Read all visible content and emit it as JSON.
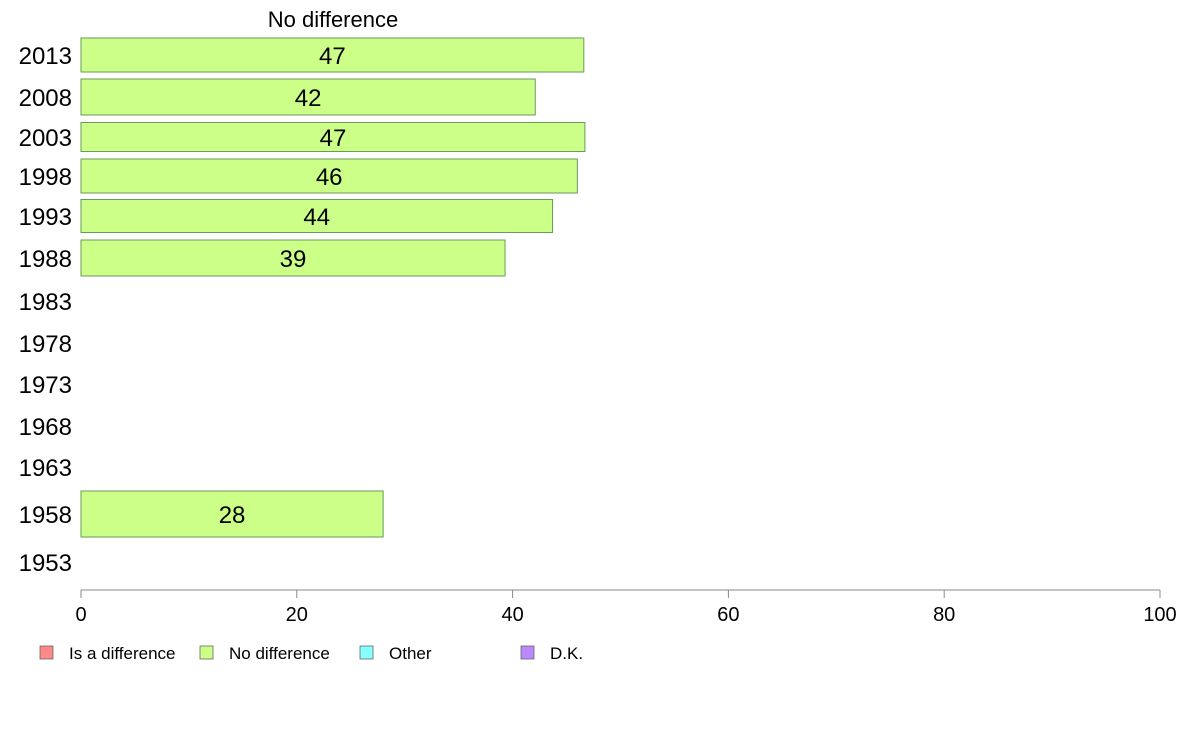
{
  "chart_data": {
    "type": "bar",
    "orientation": "horizontal",
    "title": "No difference",
    "categories": [
      "2013",
      "2008",
      "2003",
      "1998",
      "1993",
      "1988",
      "1983",
      "1978",
      "1973",
      "1968",
      "1963",
      "1958",
      "1953"
    ],
    "series": [
      {
        "name": "No difference",
        "color": "#ccff88",
        "values": [
          46.6,
          42.1,
          46.7,
          46.0,
          43.7,
          39.3,
          null,
          null,
          null,
          null,
          null,
          28.0,
          null
        ],
        "labels": [
          "47",
          "42",
          "47",
          "46",
          "44",
          "39",
          "",
          "",
          "",
          "",
          "",
          "28",
          ""
        ]
      }
    ],
    "xlim": [
      0,
      100
    ],
    "xticks": [
      "0",
      "20",
      "40",
      "60",
      "80",
      "100"
    ],
    "legend": {
      "placement": "bottom-left",
      "items": [
        {
          "label": "Is a difference",
          "color": "#ff8888"
        },
        {
          "label": "No difference",
          "color": "#ccff88"
        },
        {
          "label": "Other",
          "color": "#88ffff"
        },
        {
          "label": "D.K.",
          "color": "#bb88ff"
        }
      ]
    }
  }
}
